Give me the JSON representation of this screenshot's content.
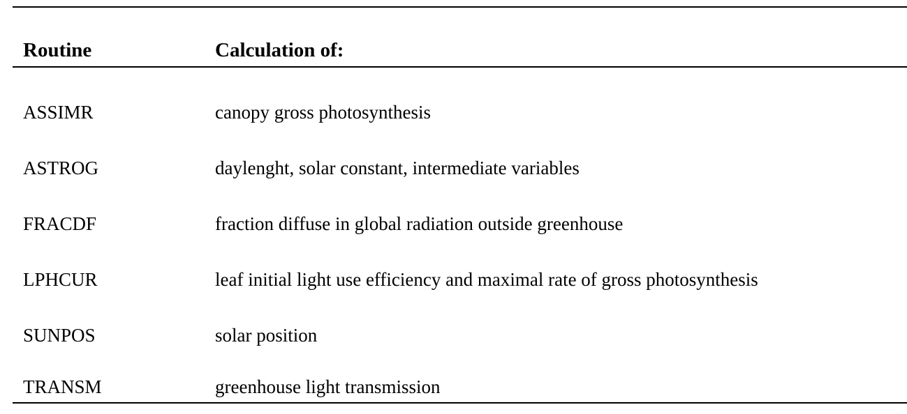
{
  "table": {
    "header": {
      "routine": "Routine",
      "calculation": "Calculation of:"
    },
    "rows": [
      {
        "routine": "ASSIMR",
        "calculation": "canopy gross photosynthesis"
      },
      {
        "routine": "ASTROG",
        "calculation": "daylenght, solar constant, intermediate variables"
      },
      {
        "routine": "FRACDF",
        "calculation": "fraction diffuse in global radiation outside greenhouse"
      },
      {
        "routine": "LPHCUR",
        "calculation": "leaf initial light use efficiency and maximal rate of gross photosynthesis"
      },
      {
        "routine": "SUNPOS",
        "calculation": "solar position"
      },
      {
        "routine": "TRANSM",
        "calculation": "greenhouse light transmission"
      }
    ]
  }
}
